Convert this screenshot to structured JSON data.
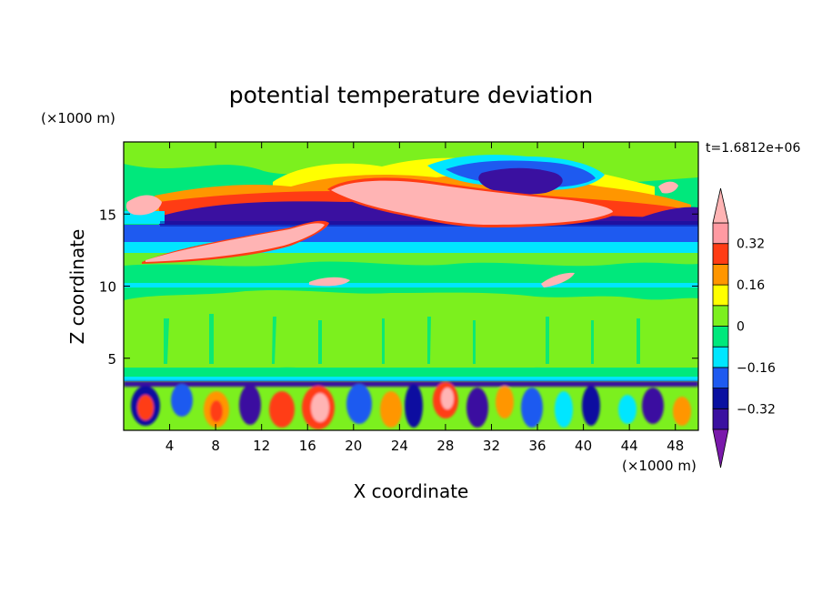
{
  "chart_data": {
    "type": "heatmap",
    "title": "potential temperature deviation",
    "xlabel": "X coordinate",
    "ylabel": "Z coordinate",
    "x_unit": "(×1000 m)",
    "y_unit": "(×1000 m)",
    "time_label": "t=1.6812e+06",
    "xlim": [
      0,
      50
    ],
    "ylim": [
      0,
      20
    ],
    "x_ticks": [
      4,
      8,
      12,
      16,
      20,
      24,
      28,
      32,
      36,
      40,
      44,
      48
    ],
    "y_ticks": [
      5,
      10,
      15
    ],
    "colorbar": {
      "levels": [
        -0.4,
        -0.32,
        -0.24,
        -0.16,
        -0.08,
        0,
        0.08,
        0.16,
        0.24,
        0.32,
        0.4
      ],
      "tick_labels": [
        "0.32",
        "0.16",
        "0",
        "−0.16",
        "−0.32"
      ],
      "tick_values": [
        0.32,
        0.16,
        0,
        -0.16,
        -0.32
      ],
      "colors": {
        "below": "#7a19ab",
        "bands": [
          "#3a10a0",
          "#0a10a0",
          "#1e5af0",
          "#00e6ff",
          "#00e87c",
          "#7cf01e",
          "#ffff00",
          "#ff9600",
          "#ff3c14",
          "#ff9aa2"
        ],
        "above": "#ffb4b4"
      }
    }
  }
}
